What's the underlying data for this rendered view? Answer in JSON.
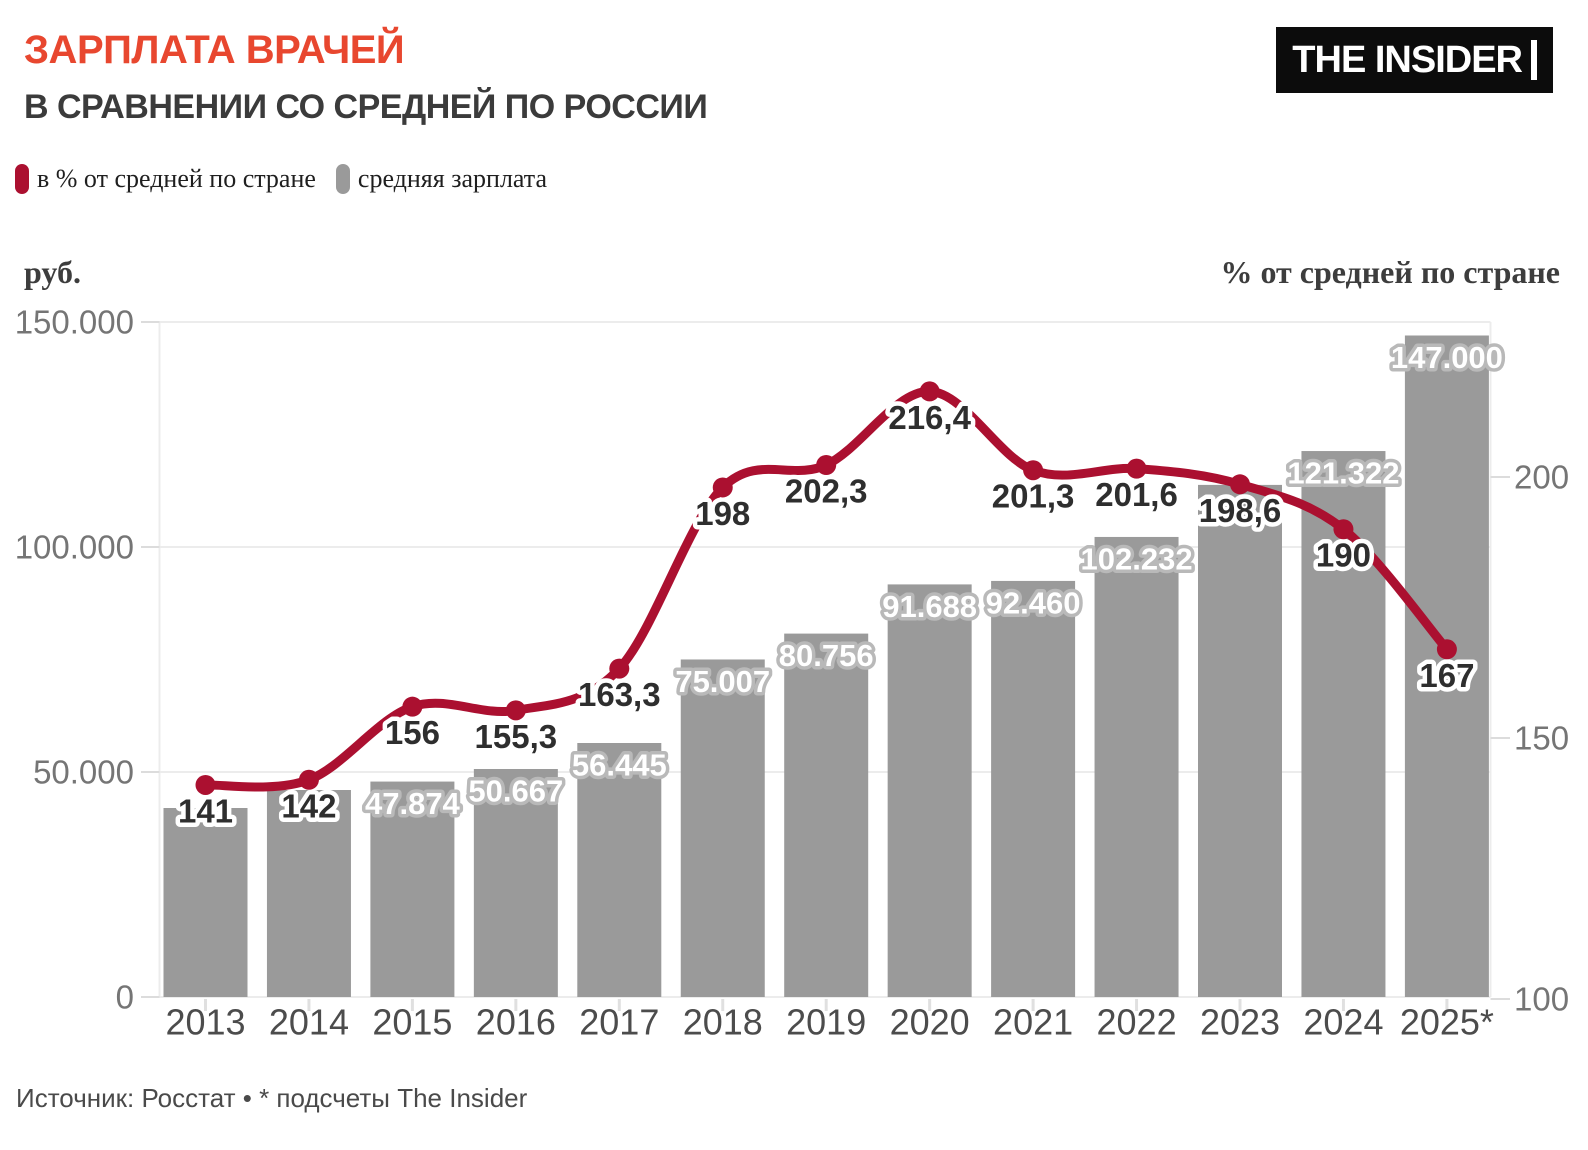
{
  "header": {
    "title": "ЗАРПЛАТА ВРАЧЕЙ",
    "subtitle": "В СРАВНЕНИИ СО СРЕДНЕЙ ПО РОССИИ",
    "title_color": "#e8472f",
    "logo_text": "THE INSIDER"
  },
  "legend": {
    "items": [
      {
        "label": "в % от средней по стране",
        "color": "#ab1030",
        "series": "line"
      },
      {
        "label": "средняя зарплата",
        "color": "#9a9a9a",
        "series": "bar"
      }
    ]
  },
  "footer": {
    "source": "Источник: Росстат • * подсчеты The Insider"
  },
  "chart_data": {
    "type": "bar",
    "combo": "bar+line",
    "title": "ЗАРПЛАТА ВРАЧЕЙ В СРАВНЕНИИ СО СРЕДНЕЙ ПО РОССИИ",
    "categories": [
      "2013",
      "2014",
      "2015",
      "2016",
      "2017",
      "2018",
      "2019",
      "2020",
      "2021",
      "2022",
      "2023",
      "2024",
      "2025*"
    ],
    "left_axis": {
      "title": "руб.",
      "range": [
        0,
        150000
      ],
      "ticks": [
        {
          "label": "0",
          "value": 0
        },
        {
          "label": "50.000",
          "value": 50000
        },
        {
          "label": "100.000",
          "value": 100000
        },
        {
          "label": "150.000",
          "value": 150000
        }
      ]
    },
    "right_axis": {
      "title": "% от средней по стране",
      "range": [
        100,
        230
      ],
      "ticks": [
        {
          "label": "100",
          "value": 100
        },
        {
          "label": "150",
          "value": 150
        },
        {
          "label": "200",
          "value": 200
        }
      ]
    },
    "series": [
      {
        "name": "средняя зарплата",
        "type": "bar",
        "axis": "left",
        "unit": "руб.",
        "color": "#9a9a9a",
        "values": [
          42000,
          46000,
          47874,
          50667,
          56445,
          75007,
          80756,
          91688,
          92460,
          102232,
          113800,
          121322,
          147000
        ],
        "labels": [
          null,
          null,
          "47.874",
          "50.667",
          "56.445",
          "75.007",
          "80.756",
          "91.688",
          "92.460",
          "102.232",
          null,
          "121.322",
          "147.000"
        ],
        "estimated_value_indices": [
          0,
          1,
          10
        ]
      },
      {
        "name": "в % от средней по стране",
        "type": "line",
        "axis": "right",
        "unit": "%",
        "color": "#ab1030",
        "values": [
          141,
          142,
          156,
          155.3,
          163.3,
          198,
          202.3,
          216.4,
          201.3,
          201.6,
          198.6,
          190,
          167
        ],
        "labels": [
          "141",
          "142",
          "156",
          "155,3",
          "163,3",
          "198",
          "202,3",
          "216,4",
          "201,3",
          "201,6",
          "198,6",
          "190",
          "167"
        ]
      }
    ],
    "grid": true,
    "legend_position": "top-left"
  }
}
